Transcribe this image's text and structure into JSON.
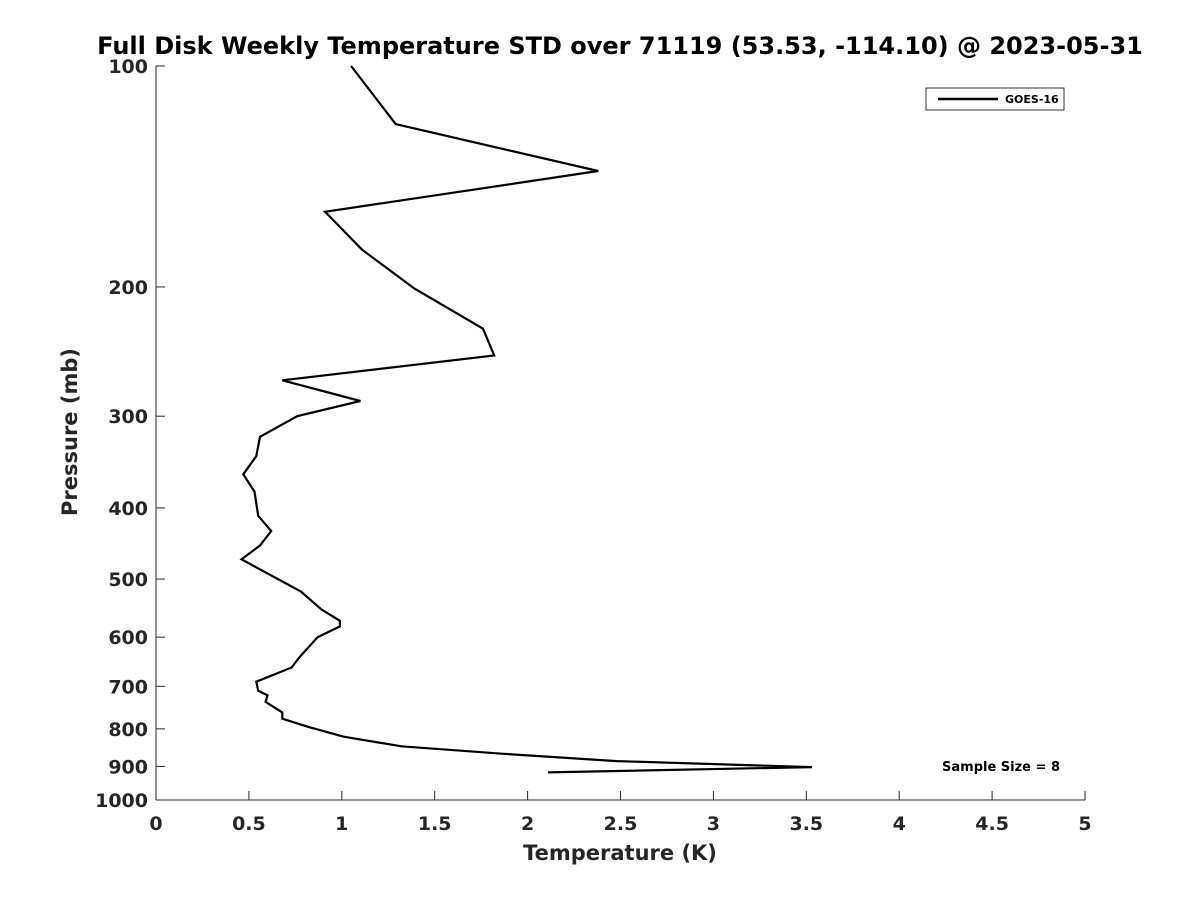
{
  "chart_data": {
    "type": "line",
    "title": "Full Disk Weekly Temperature STD over 71119 (53.53, -114.10) @ 2023-05-31",
    "xlabel": "Temperature (K)",
    "ylabel": "Pressure (mb)",
    "xlim": [
      0,
      5
    ],
    "ylim": [
      100,
      1000
    ],
    "y_scale": "log",
    "y_reversed": true,
    "x_ticks": [
      "0",
      "0.5",
      "1",
      "1.5",
      "2",
      "2.5",
      "3",
      "3.5",
      "4",
      "4.5",
      "5"
    ],
    "y_ticks": [
      "100",
      "200",
      "300",
      "400",
      "500",
      "600",
      "700",
      "800",
      "900",
      "1000"
    ],
    "grid": false,
    "legend_position": "top-right",
    "series": [
      {
        "name": "GOES-16",
        "color": "#000000",
        "points": [
          {
            "x": 1.05,
            "y": 100
          },
          {
            "x": 1.29,
            "y": 120
          },
          {
            "x": 2.38,
            "y": 139
          },
          {
            "x": 0.91,
            "y": 158
          },
          {
            "x": 1.11,
            "y": 178
          },
          {
            "x": 1.39,
            "y": 201
          },
          {
            "x": 1.76,
            "y": 228
          },
          {
            "x": 1.82,
            "y": 248
          },
          {
            "x": 0.68,
            "y": 268
          },
          {
            "x": 1.1,
            "y": 286
          },
          {
            "x": 0.76,
            "y": 300
          },
          {
            "x": 0.56,
            "y": 320
          },
          {
            "x": 0.54,
            "y": 340
          },
          {
            "x": 0.47,
            "y": 360
          },
          {
            "x": 0.53,
            "y": 380
          },
          {
            "x": 0.55,
            "y": 410
          },
          {
            "x": 0.62,
            "y": 430
          },
          {
            "x": 0.56,
            "y": 450
          },
          {
            "x": 0.46,
            "y": 470
          },
          {
            "x": 0.78,
            "y": 520
          },
          {
            "x": 0.89,
            "y": 550
          },
          {
            "x": 0.99,
            "y": 570
          },
          {
            "x": 0.99,
            "y": 580
          },
          {
            "x": 0.87,
            "y": 600
          },
          {
            "x": 0.77,
            "y": 640
          },
          {
            "x": 0.73,
            "y": 660
          },
          {
            "x": 0.54,
            "y": 690
          },
          {
            "x": 0.55,
            "y": 710
          },
          {
            "x": 0.6,
            "y": 720
          },
          {
            "x": 0.59,
            "y": 735
          },
          {
            "x": 0.68,
            "y": 760
          },
          {
            "x": 0.68,
            "y": 775
          },
          {
            "x": 0.82,
            "y": 795
          },
          {
            "x": 1.01,
            "y": 820
          },
          {
            "x": 1.32,
            "y": 845
          },
          {
            "x": 1.87,
            "y": 865
          },
          {
            "x": 2.48,
            "y": 885
          },
          {
            "x": 3.53,
            "y": 902
          },
          {
            "x": 2.11,
            "y": 917
          }
        ]
      }
    ],
    "annotations": [
      {
        "text": "Sample Size = 8",
        "position": "bottom-right"
      }
    ]
  }
}
